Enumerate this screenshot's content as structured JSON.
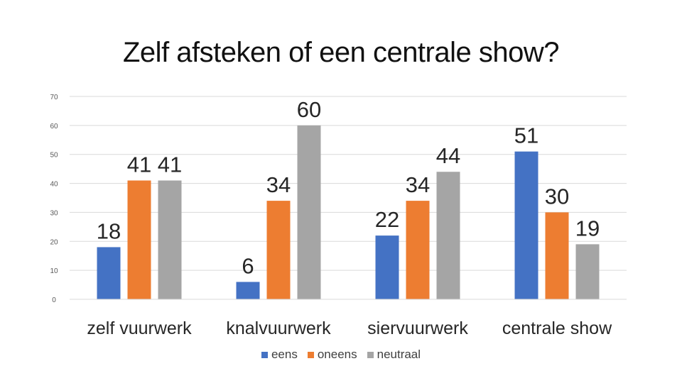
{
  "chart_data": {
    "type": "bar",
    "title": "Zelf afsteken of een centrale show?",
    "categories": [
      "zelf vuurwerk",
      "knalvuurwerk",
      "siervuurwerk",
      "centrale show"
    ],
    "series": [
      {
        "name": "eens",
        "color": "#4472C4",
        "values": [
          18,
          6,
          22,
          51
        ]
      },
      {
        "name": "oneens",
        "color": "#ED7D31",
        "values": [
          41,
          34,
          34,
          30
        ]
      },
      {
        "name": "neutraal",
        "color": "#A5A5A5",
        "values": [
          41,
          60,
          44,
          19
        ]
      }
    ],
    "ylim": [
      0,
      70
    ],
    "yticks": [
      "0",
      "10",
      "20",
      "30",
      "40",
      "50",
      "60",
      "70"
    ],
    "grid": true,
    "legend_position": "bottom"
  }
}
